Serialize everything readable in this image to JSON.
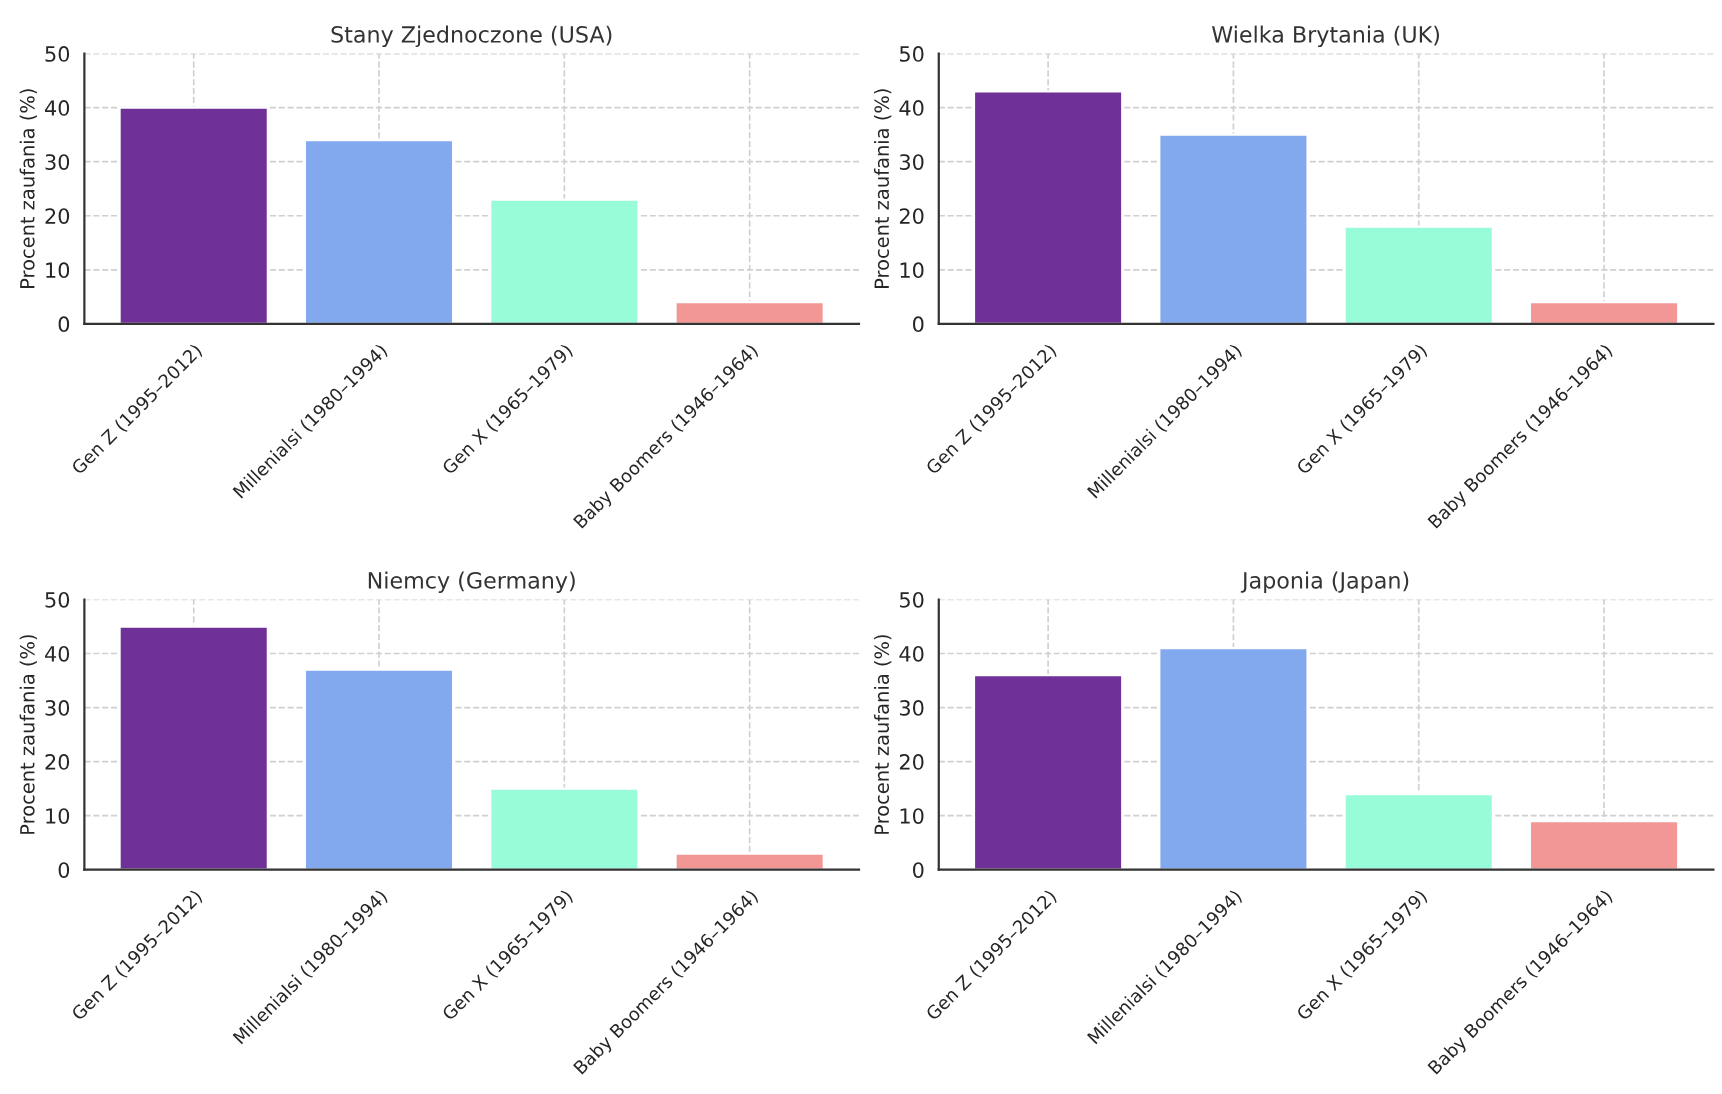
{
  "chart_data": [
    {
      "type": "bar",
      "title": "Stany Zjednoczone (USA)",
      "ylabel": "Procent zaufania (%)",
      "categories": [
        "Gen Z (1995–2012)",
        "Millenialsi (1980–1994)",
        "Gen X (1965–1979)",
        "Baby Boomers (1946–1964)"
      ],
      "values": [
        40,
        34,
        23,
        4
      ],
      "colors": [
        "#6f3198",
        "#82a8ee",
        "#98fcd8",
        "#f29796"
      ],
      "ylim": [
        0,
        50
      ],
      "yticks": [
        0,
        10,
        20,
        30,
        40,
        50
      ],
      "grid": true
    },
    {
      "type": "bar",
      "title": "Wielka Brytania (UK)",
      "ylabel": "Procent zaufania (%)",
      "categories": [
        "Gen Z (1995–2012)",
        "Millenialsi (1980–1994)",
        "Gen X (1965–1979)",
        "Baby Boomers (1946–1964)"
      ],
      "values": [
        43,
        35,
        18,
        4
      ],
      "colors": [
        "#6f3198",
        "#82a8ee",
        "#98fcd8",
        "#f29796"
      ],
      "ylim": [
        0,
        50
      ],
      "yticks": [
        0,
        10,
        20,
        30,
        40,
        50
      ],
      "grid": true
    },
    {
      "type": "bar",
      "title": "Niemcy (Germany)",
      "ylabel": "Procent zaufania (%)",
      "categories": [
        "Gen Z (1995–2012)",
        "Millenialsi (1980–1994)",
        "Gen X (1965–1979)",
        "Baby Boomers (1946–1964)"
      ],
      "values": [
        45,
        37,
        15,
        3
      ],
      "colors": [
        "#6f3198",
        "#82a8ee",
        "#98fcd8",
        "#f29796"
      ],
      "ylim": [
        0,
        50
      ],
      "yticks": [
        0,
        10,
        20,
        30,
        40,
        50
      ],
      "grid": true
    },
    {
      "type": "bar",
      "title": "Japonia (Japan)",
      "ylabel": "Procent zaufania (%)",
      "categories": [
        "Gen Z (1995–2012)",
        "Millenialsi (1980–1994)",
        "Gen X (1965–1979)",
        "Baby Boomers (1946–1964)"
      ],
      "values": [
        36,
        41,
        14,
        9
      ],
      "colors": [
        "#6f3198",
        "#82a8ee",
        "#98fcd8",
        "#f29796"
      ],
      "ylim": [
        0,
        50
      ],
      "yticks": [
        0,
        10,
        20,
        30,
        40,
        50
      ],
      "grid": true
    }
  ]
}
